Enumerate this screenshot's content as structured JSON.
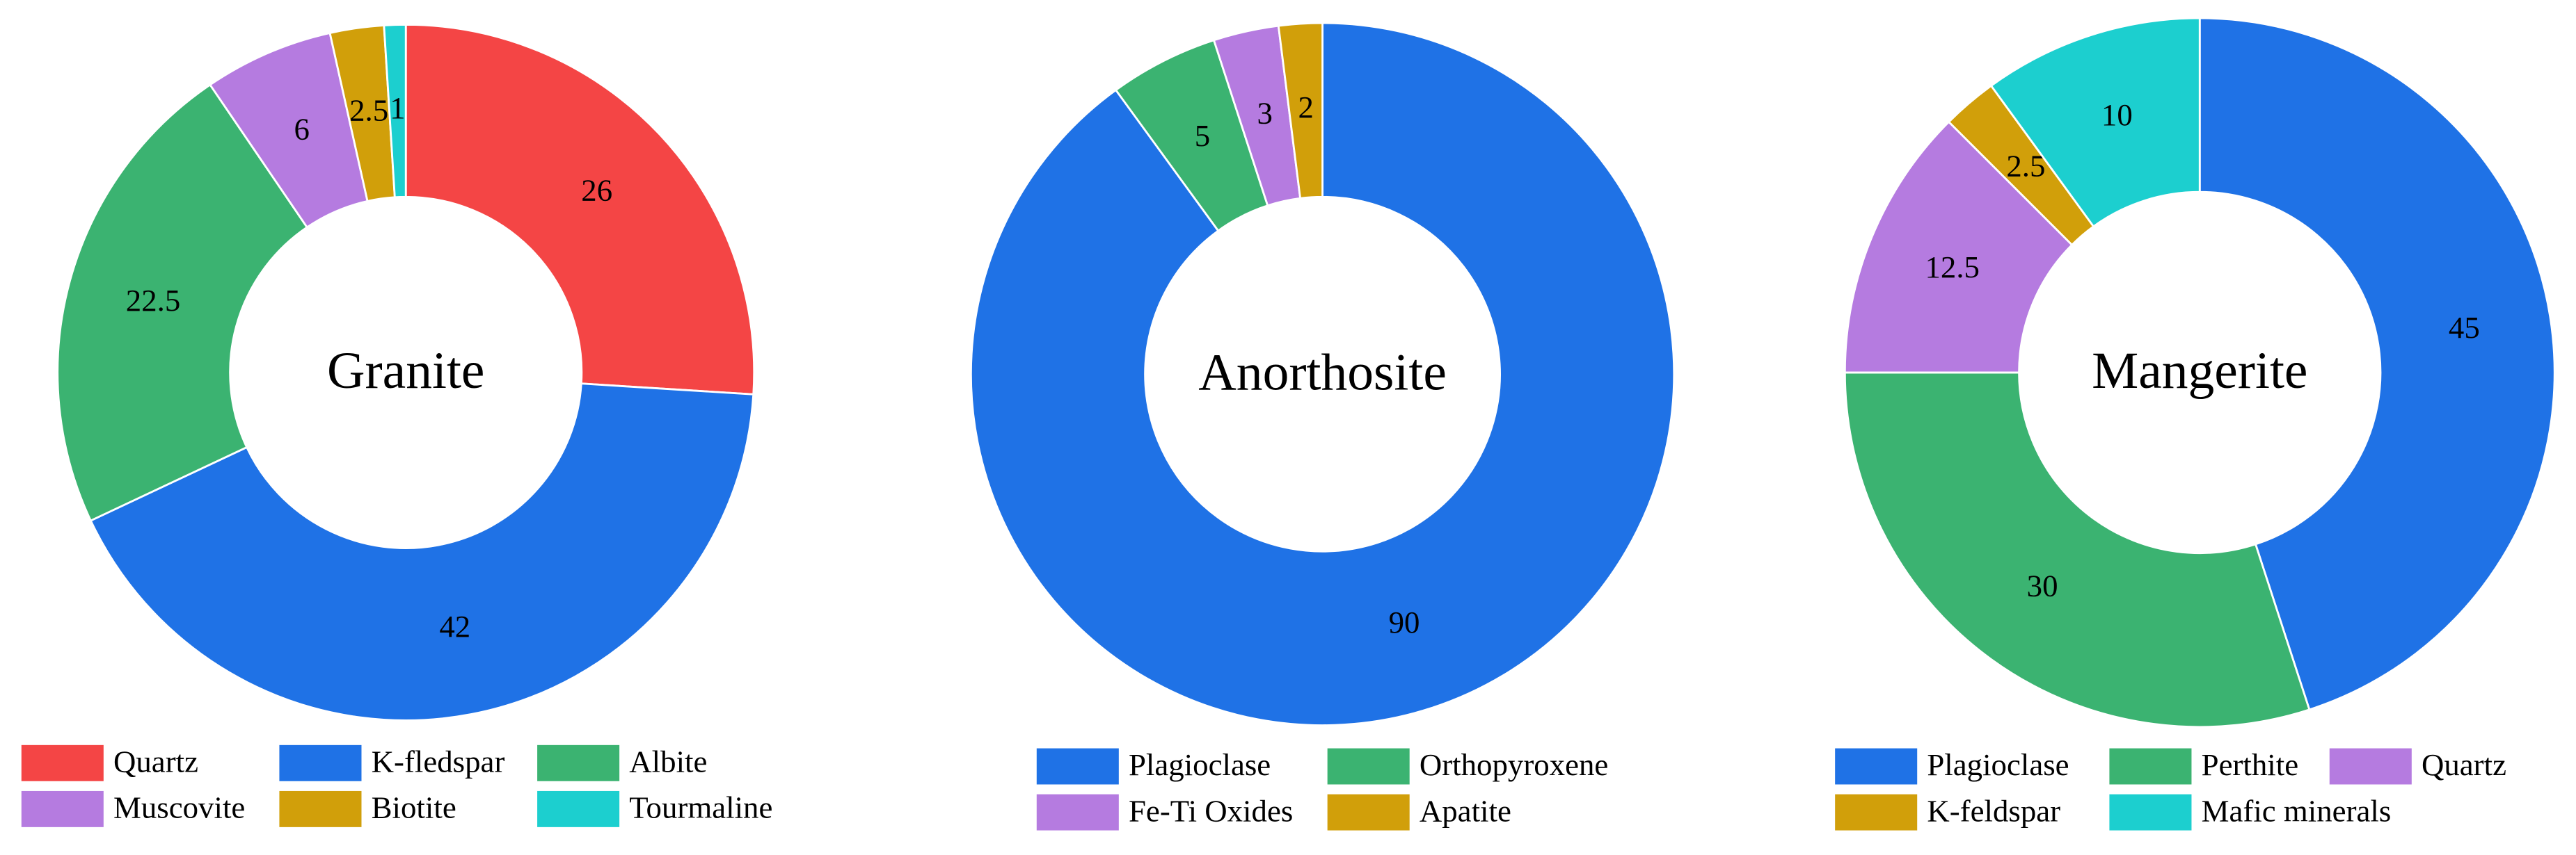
{
  "chart_data": [
    {
      "type": "pie",
      "title": "Granite",
      "categories": [
        "Quartz",
        "K-fledspar",
        "Albite",
        "Muscovite",
        "Biotite",
        "Tourmaline"
      ],
      "values": [
        26,
        42,
        22.5,
        6,
        2.5,
        1
      ],
      "colors": [
        "#f44545",
        "#1f72e6",
        "#3bb371",
        "#b57be0",
        "#d19f0a",
        "#1ccfcf"
      ]
    },
    {
      "type": "pie",
      "title": "Anorthosite",
      "categories": [
        "Plagioclase",
        "Orthopyroxene",
        "Fe-Ti Oxides",
        "Apatite"
      ],
      "values": [
        90,
        5,
        3,
        2
      ],
      "colors": [
        "#1f72e6",
        "#3bb371",
        "#b57be0",
        "#d19f0a"
      ]
    },
    {
      "type": "pie",
      "title": "Mangerite",
      "categories": [
        "Plagioclase",
        "Perthite",
        "Quartz",
        "K-feldspar",
        "Mafic minerals"
      ],
      "values": [
        45,
        30,
        12.5,
        2.5,
        10
      ],
      "colors": [
        "#1f72e6",
        "#3bb371",
        "#b57be0",
        "#d19f0a",
        "#1ccfcf"
      ]
    }
  ]
}
